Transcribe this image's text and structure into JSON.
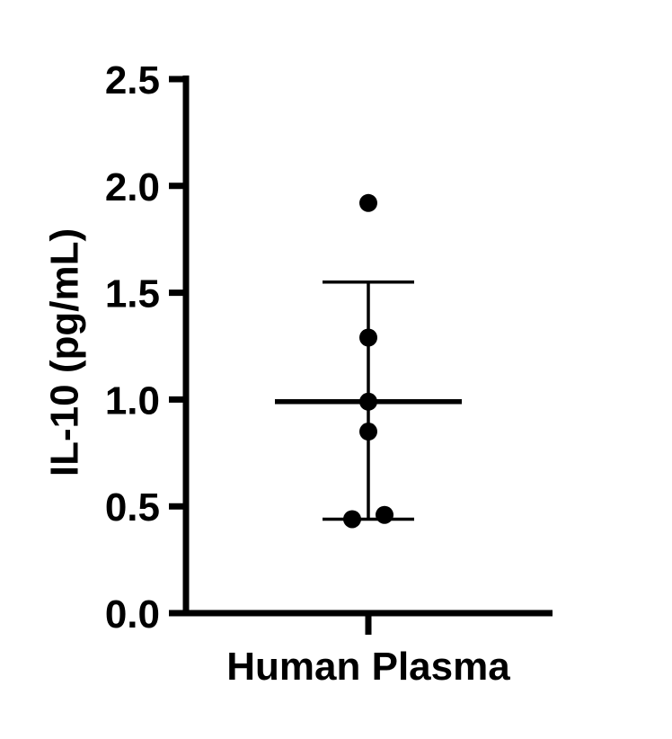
{
  "figure": {
    "background": "#ffffff"
  },
  "chart_data": {
    "type": "scatter",
    "title": "",
    "xlabel": "",
    "ylabel": "IL-10 (pg/mL)",
    "categories": [
      "Human Plasma"
    ],
    "series": [
      {
        "name": "Human Plasma",
        "points": [
          {
            "value": 1.92,
            "offset": 0
          },
          {
            "value": 1.29,
            "offset": 0
          },
          {
            "value": 0.99,
            "offset": 0
          },
          {
            "value": 0.85,
            "offset": 0
          },
          {
            "value": 0.44,
            "offset": -18
          },
          {
            "value": 0.46,
            "offset": 18
          }
        ],
        "mean": 0.99,
        "error_upper": 1.55,
        "error_lower": 0.44
      }
    ],
    "ylim": [
      0.0,
      2.5
    ],
    "yticks": [
      0.0,
      0.5,
      1.0,
      1.5,
      2.0,
      2.5
    ],
    "ytick_labels": [
      "0.0",
      "0.5",
      "1.0",
      "1.5",
      "2.0",
      "2.5"
    ],
    "grid": false,
    "legend": false,
    "colors": {
      "marker": "#000000",
      "axis": "#000000",
      "error_bar": "#000000",
      "mean_line": "#000000",
      "background": "#ffffff"
    }
  }
}
